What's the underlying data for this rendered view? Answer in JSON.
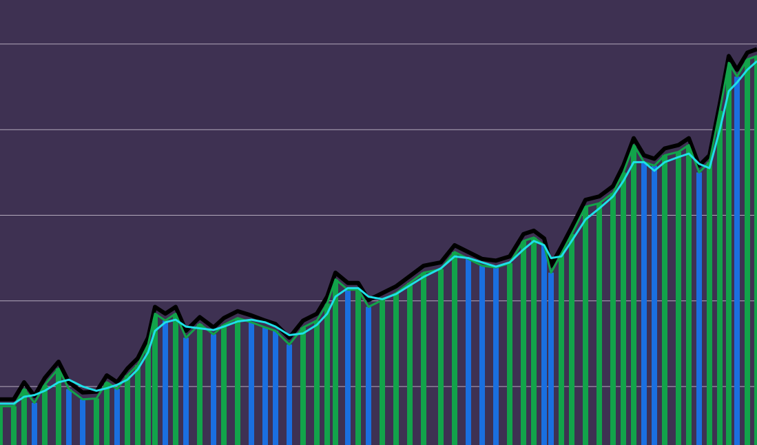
{
  "chart_data": {
    "type": "line",
    "x": [
      0,
      20,
      35,
      50,
      65,
      85,
      100,
      120,
      140,
      155,
      170,
      185,
      200,
      215,
      225,
      240,
      255,
      270,
      290,
      310,
      325,
      345,
      365,
      385,
      400,
      420,
      440,
      460,
      475,
      487,
      505,
      520,
      535,
      555,
      575,
      595,
      615,
      640,
      660,
      680,
      700,
      720,
      740,
      760,
      775,
      790,
      800,
      815,
      830,
      850,
      870,
      890,
      905,
      920,
      935,
      950,
      965,
      985,
      1000,
      1015,
      1030,
      1045,
      1058,
      1070,
      1085,
      1099
    ],
    "series": [
      {
        "color": "#000000",
        "values": [
          0.85,
          0.85,
          1.05,
          0.89,
          1.1,
          1.29,
          1.05,
          0.93,
          0.94,
          1.13,
          1.05,
          1.21,
          1.33,
          1.57,
          1.93,
          1.85,
          1.93,
          1.65,
          1.81,
          1.69,
          1.8,
          1.88,
          1.83,
          1.77,
          1.73,
          1.57,
          1.77,
          1.85,
          2.05,
          2.33,
          2.21,
          2.21,
          2.01,
          2.09,
          2.17,
          2.29,
          2.41,
          2.45,
          2.65,
          2.57,
          2.49,
          2.47,
          2.52,
          2.78,
          2.82,
          2.73,
          2.41,
          2.63,
          2.86,
          3.18,
          3.22,
          3.34,
          3.58,
          3.9,
          3.7,
          3.66,
          3.78,
          3.82,
          3.9,
          3.58,
          3.7,
          4.3,
          4.86,
          4.7,
          4.9,
          4.94
        ]
      },
      {
        "color": "#12a34a",
        "values": [
          0.77,
          0.77,
          0.97,
          0.81,
          1.02,
          1.21,
          0.97,
          0.85,
          0.86,
          1.05,
          0.97,
          1.13,
          1.25,
          1.49,
          1.85,
          1.77,
          1.85,
          1.57,
          1.73,
          1.61,
          1.72,
          1.8,
          1.75,
          1.69,
          1.65,
          1.49,
          1.69,
          1.77,
          1.97,
          2.25,
          2.13,
          2.13,
          1.93,
          2.01,
          2.09,
          2.21,
          2.33,
          2.37,
          2.57,
          2.49,
          2.41,
          2.39,
          2.44,
          2.7,
          2.74,
          2.65,
          2.33,
          2.55,
          2.78,
          3.1,
          3.14,
          3.26,
          3.5,
          3.82,
          3.62,
          3.58,
          3.7,
          3.74,
          3.82,
          3.5,
          3.62,
          4.22,
          4.78,
          4.62,
          4.82,
          4.86
        ]
      },
      {
        "color": "#1ee0e8",
        "values": [
          0.8,
          0.8,
          0.88,
          0.9,
          0.95,
          1.05,
          1.08,
          1.0,
          0.95,
          0.98,
          1.02,
          1.08,
          1.2,
          1.4,
          1.65,
          1.75,
          1.78,
          1.7,
          1.68,
          1.66,
          1.7,
          1.76,
          1.78,
          1.75,
          1.7,
          1.6,
          1.62,
          1.72,
          1.85,
          2.05,
          2.15,
          2.15,
          2.05,
          2.02,
          2.08,
          2.18,
          2.28,
          2.38,
          2.52,
          2.5,
          2.45,
          2.4,
          2.45,
          2.6,
          2.7,
          2.65,
          2.5,
          2.52,
          2.7,
          2.95,
          3.08,
          3.22,
          3.4,
          3.62,
          3.62,
          3.52,
          3.62,
          3.68,
          3.72,
          3.6,
          3.55,
          4.0,
          4.45,
          4.55,
          4.7,
          4.8
        ]
      }
    ],
    "bar_colors": [
      "#12a34a",
      "#1a6fe0"
    ],
    "xlim": [
      0,
      1099
    ],
    "ylim": [
      0.317,
      5.514
    ],
    "yticks": [
      1,
      2,
      3,
      4,
      5
    ],
    "grid": true
  }
}
